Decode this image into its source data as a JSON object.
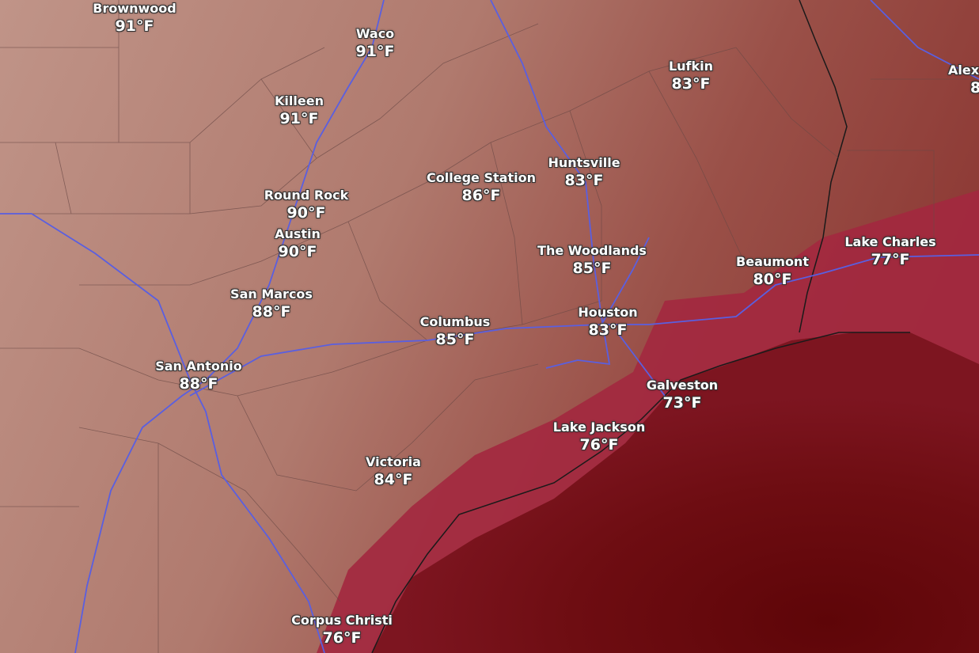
{
  "map": {
    "colors": {
      "land_hot": "#b98a7e",
      "land_warm": "#a45a52",
      "coast_band": "#a3283f",
      "gulf": "#6e0d12",
      "highway": "#5a5fe0",
      "borders": "#5e4040",
      "coastline": "#1a1a1a"
    },
    "cities": [
      {
        "name": "Brownwood",
        "temp": "91°F"
      },
      {
        "name": "Waco",
        "temp": "91°F"
      },
      {
        "name": "Lufkin",
        "temp": "83°F"
      },
      {
        "name": "Alex",
        "temp": "8"
      },
      {
        "name": "Killeen",
        "temp": "91°F"
      },
      {
        "name": "Huntsville",
        "temp": "83°F"
      },
      {
        "name": "College Station",
        "temp": "86°F"
      },
      {
        "name": "Round Rock",
        "temp": "90°F"
      },
      {
        "name": "Austin",
        "temp": "90°F"
      },
      {
        "name": "Lake Charles",
        "temp": "77°F"
      },
      {
        "name": "The Woodlands",
        "temp": "85°F"
      },
      {
        "name": "Beaumont",
        "temp": "80°F"
      },
      {
        "name": "San Marcos",
        "temp": "88°F"
      },
      {
        "name": "Houston",
        "temp": "83°F"
      },
      {
        "name": "Columbus",
        "temp": "85°F"
      },
      {
        "name": "San Antonio",
        "temp": "88°F"
      },
      {
        "name": "Galveston",
        "temp": "73°F"
      },
      {
        "name": "Lake Jackson",
        "temp": "76°F"
      },
      {
        "name": "Victoria",
        "temp": "84°F"
      },
      {
        "name": "Corpus Christi",
        "temp": "76°F"
      }
    ]
  }
}
